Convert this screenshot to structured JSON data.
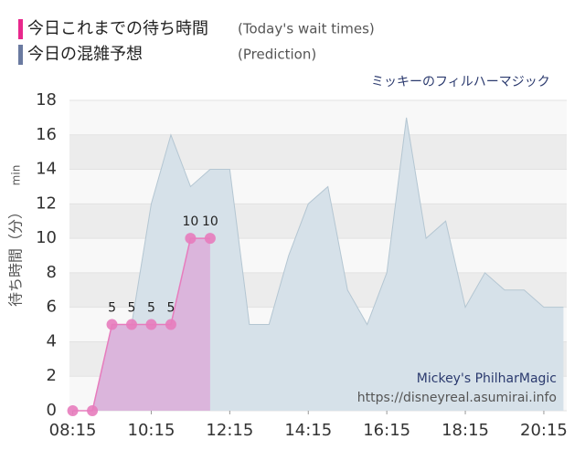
{
  "chart_data": {
    "type": "area",
    "title": "ミッキーのフィルハーマジック",
    "watermark": "Mickey's PhilharMagic",
    "source": "https://disneyreal.asumirai.info",
    "ylabel": "待ち時間（分）",
    "ylabel_unit": "min",
    "x": [
      "08:15",
      "08:45",
      "09:15",
      "09:45",
      "10:15",
      "10:45",
      "11:15",
      "11:45",
      "12:15",
      "12:45",
      "13:15",
      "13:45",
      "14:15",
      "14:45",
      "15:15",
      "15:45",
      "16:15",
      "16:45",
      "17:15",
      "17:45",
      "18:15",
      "18:45",
      "19:15",
      "19:45",
      "20:15",
      "20:45"
    ],
    "series": [
      {
        "name": "今日これまでの待ち時間",
        "subname": "(Today's wait times)",
        "color": "#e8288c",
        "fill": "#dcb0da",
        "marker": "#e77cbd",
        "values": [
          0,
          0,
          5,
          5,
          5,
          5,
          10,
          10,
          null,
          null,
          null,
          null,
          null,
          null,
          null,
          null,
          null,
          null,
          null,
          null,
          null,
          null,
          null,
          null,
          null,
          null
        ]
      },
      {
        "name": "今日の混雑予想",
        "subname": "(Prediction)",
        "color": "#6a7aa0",
        "fill": "#d6e1e9",
        "stroke": "#b4c6d2",
        "values": [
          0,
          0,
          5,
          5,
          12,
          16,
          13,
          14,
          14,
          5,
          5,
          9,
          12,
          13,
          7,
          5,
          8,
          17,
          10,
          11,
          6,
          8,
          7,
          7,
          6,
          6
        ]
      }
    ],
    "xlim": [
      "08:10",
      "20:50"
    ],
    "xticks": [
      "08:15",
      "10:15",
      "12:15",
      "14:15",
      "16:15",
      "18:15",
      "20:15"
    ],
    "ylim": [
      0,
      18
    ],
    "yticks": [
      0,
      2,
      4,
      6,
      8,
      10,
      12,
      14,
      16,
      18
    ],
    "grid": true
  }
}
